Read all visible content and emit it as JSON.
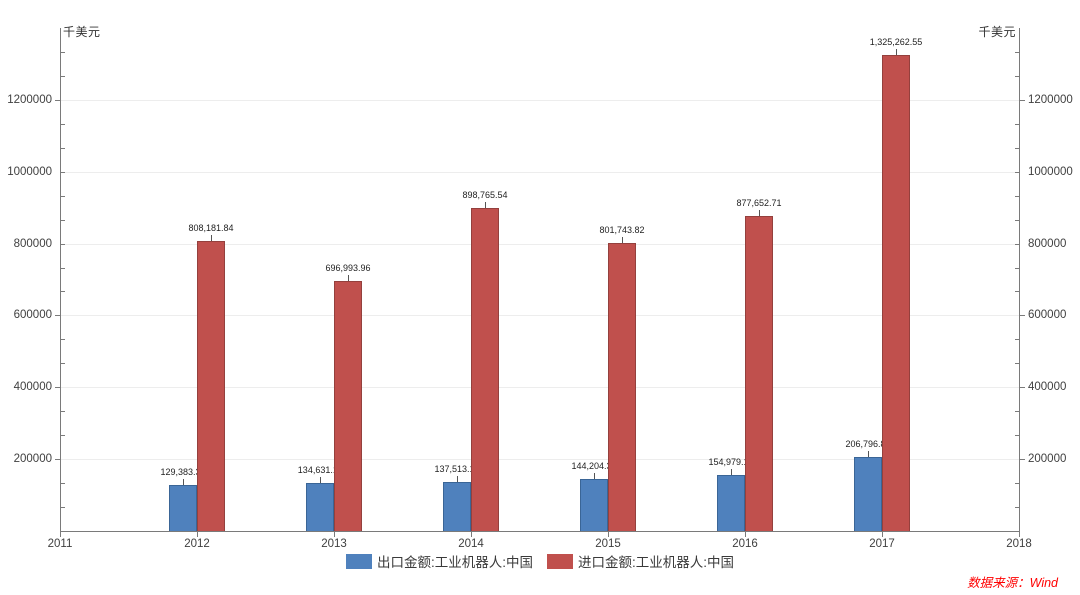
{
  "chart_data": {
    "type": "bar",
    "title": "",
    "unit_label": "千美元",
    "source_note": "数据来源：Wind",
    "x_axis_years": [
      "2011",
      "2012",
      "2013",
      "2014",
      "2015",
      "2016",
      "2017",
      "2018"
    ],
    "categories": [
      "2012",
      "2013",
      "2014",
      "2015",
      "2016",
      "2017"
    ],
    "series": [
      {
        "name": "出口金额:工业机器人:中国",
        "color": "#4F81BD",
        "border_color": "#3A6596",
        "values": [
          129383.36,
          134631.11,
          137513.16,
          144204.3,
          154979.18,
          206796.8
        ],
        "labels": [
          "129,383.36",
          "134,631.11",
          "137,513.16",
          "144,204.30",
          "154,979.18",
          "206,796.80"
        ]
      },
      {
        "name": "进口金额:工业机器人:中国",
        "color": "#C0504D",
        "border_color": "#94403D",
        "values": [
          808181.84,
          696993.96,
          898765.54,
          801743.82,
          877652.71,
          1325262.55
        ],
        "labels": [
          "808,181.84",
          "696,993.96",
          "898,765.54",
          "801,743.82",
          "877,652.71",
          "1,325,262.55"
        ]
      }
    ],
    "y_axis": {
      "min": 0,
      "max": 1400000,
      "major_step": 200000,
      "minor_divisions": 3,
      "tick_labels": [
        "200000",
        "400000",
        "600000",
        "800000",
        "1000000",
        "1200000"
      ],
      "dual_axis": true
    },
    "grid": true,
    "legend_position": "bottom"
  }
}
